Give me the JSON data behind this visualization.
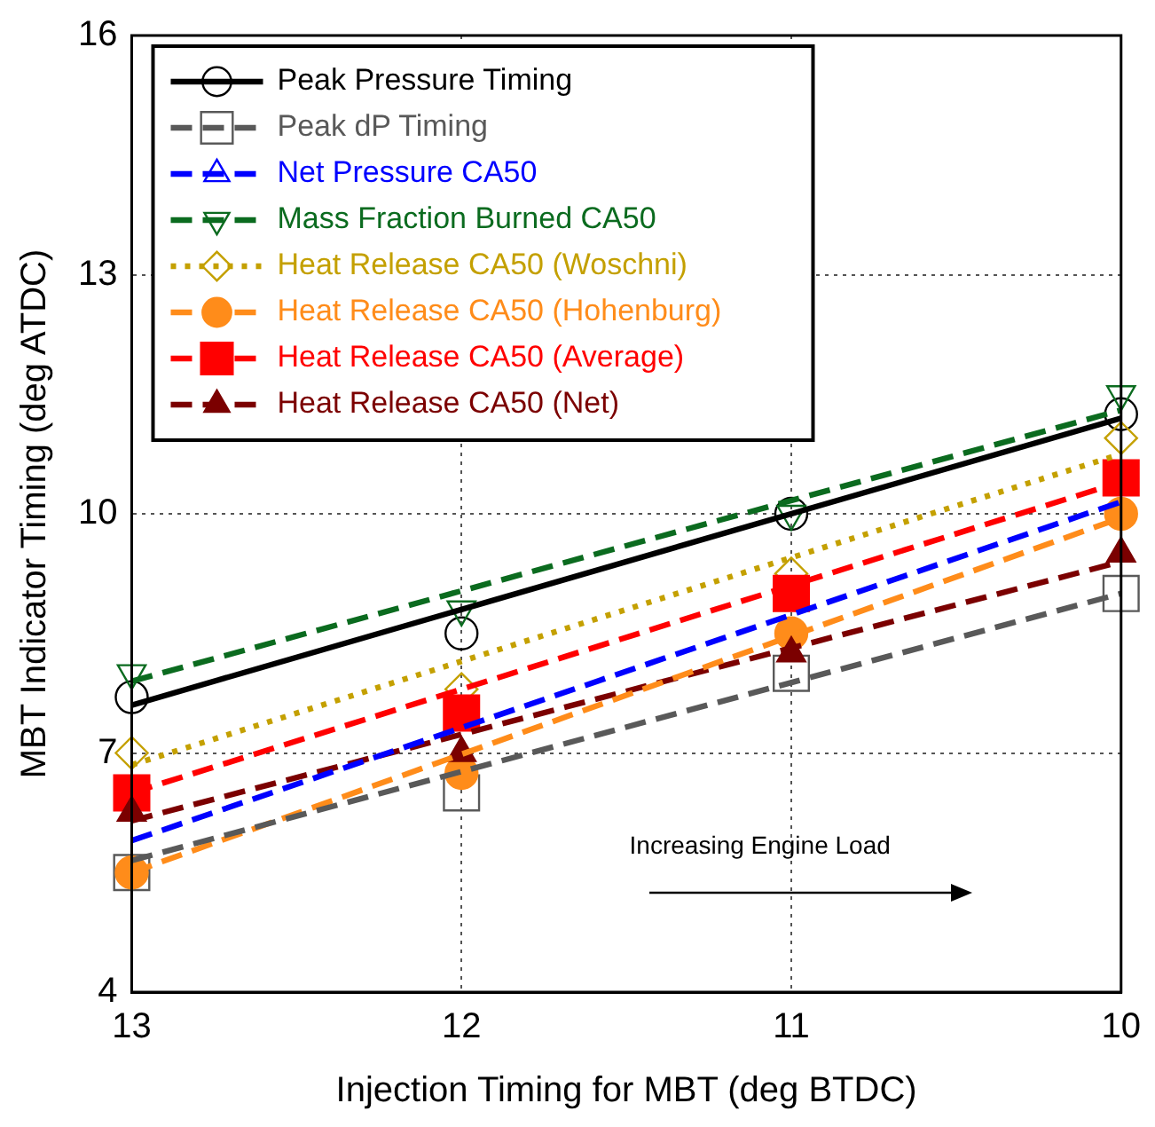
{
  "chart_data": {
    "type": "scatter",
    "xlabel": "Injection Timing for MBT (deg BTDC)",
    "ylabel": "MBT Indicator Timing (deg ATDC)",
    "x": [
      13,
      12,
      11,
      10
    ],
    "xlim": [
      13,
      10
    ],
    "xticks": [
      13,
      12,
      11,
      10
    ],
    "ylim": [
      4,
      16
    ],
    "yticks": [
      4,
      7,
      10,
      13,
      16
    ],
    "grid": true,
    "legend": "top left",
    "annotations": [
      "Increasing Engine Load"
    ],
    "series": [
      {
        "name": "Peak Pressure Timing",
        "type": "scatter",
        "marker": "circle",
        "color": "#000000",
        "values": [
          7.7,
          8.5,
          10.0,
          11.25
        ]
      },
      {
        "type": "line",
        "color": "#000000",
        "line_style": "solid",
        "values": [
          7.6,
          null,
          null,
          11.2
        ]
      },
      {
        "name": "Peak dP Timing",
        "type": "scatter",
        "marker": "square",
        "color": "#595959",
        "values": [
          5.5,
          6.5,
          8.0,
          9.0
        ]
      },
      {
        "type": "line",
        "color": "#595959",
        "line_style": "dashed",
        "values": [
          5.65,
          null,
          null,
          9.0
        ]
      },
      {
        "name": "Net Pressure CA50",
        "type": "scatter",
        "marker": "triangle",
        "color": "#0000ff",
        "values": [
          null,
          null,
          null,
          null
        ]
      },
      {
        "type": "line",
        "color": "#0000ff",
        "line_style": "dashed",
        "values": [
          5.9,
          null,
          null,
          10.15
        ]
      },
      {
        "name": "Mass Fraction Burned CA50",
        "type": "scatter",
        "marker": "triangle_down",
        "color": "#0b6b1f",
        "values": [
          8.0,
          8.8,
          10.0,
          11.5
        ]
      },
      {
        "type": "line",
        "color": "#0b6b1f",
        "line_style": "dashed",
        "values": [
          7.9,
          null,
          null,
          11.3
        ]
      },
      {
        "name": "Heat Release CA50 (Woschni)",
        "type": "scatter",
        "marker": "diamond",
        "color": "#c4a000",
        "values": [
          7.0,
          7.8,
          9.25,
          10.95
        ]
      },
      {
        "type": "line",
        "color": "#c4a000",
        "line_style": "dotted",
        "values": [
          6.85,
          null,
          null,
          10.75
        ]
      },
      {
        "name": "Heat Release CA50 (Hohenburg)",
        "type": "scatter",
        "marker": "circle",
        "color": "#ff8c1a",
        "values": [
          5.5,
          6.75,
          8.5,
          10.0
        ]
      },
      {
        "type": "line",
        "color": "#ff8c1a",
        "line_style": "dashed",
        "values": [
          5.5,
          null,
          null,
          9.95
        ]
      },
      {
        "name": "Heat Release CA50 (Average)",
        "type": "scatter",
        "marker": "square",
        "color": "#ff0000",
        "values": [
          6.5,
          7.5,
          9.0,
          10.45
        ]
      },
      {
        "type": "line",
        "color": "#ff0000",
        "line_style": "dashed",
        "values": [
          6.5,
          null,
          null,
          10.4
        ]
      },
      {
        "name": "Heat Release CA50 (Net)",
        "type": "scatter",
        "marker": "triangle",
        "color": "#7b0000",
        "values": [
          6.25,
          7.0,
          8.25,
          9.5
        ]
      },
      {
        "type": "line",
        "color": "#7b0000",
        "line_style": "dashed",
        "values": [
          6.15,
          null,
          null,
          9.4
        ]
      }
    ]
  }
}
